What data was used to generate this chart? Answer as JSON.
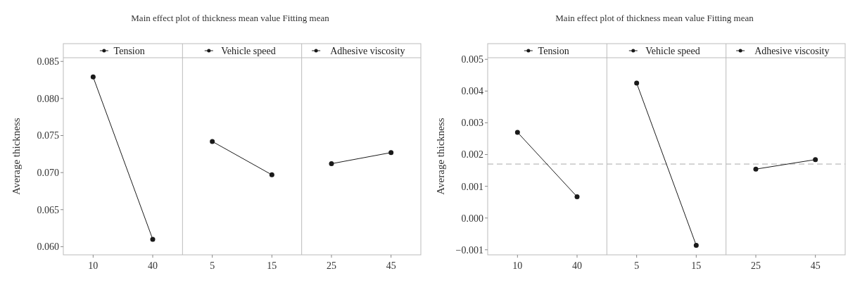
{
  "chart_data": [
    {
      "type": "line",
      "title": "Main effect plot of thickness mean value Fitting mean",
      "ylabel": "Average thickness",
      "categories": [
        "10",
        "40",
        "5",
        "15",
        "25",
        "45"
      ],
      "series": [
        {
          "name": "Tension",
          "color": "#1a1a1a",
          "values": [
            0.0829,
            0.061,
            null,
            null,
            null,
            null
          ]
        },
        {
          "name": "Vehicle speed",
          "color": "#1a1a1a",
          "values": [
            null,
            null,
            0.0742,
            0.0697,
            null,
            null
          ]
        },
        {
          "name": "Adhesive viscosity",
          "color": "#1a1a1a",
          "values": [
            null,
            null,
            null,
            null,
            0.0712,
            0.0727
          ]
        }
      ],
      "ylim": [
        0.0589,
        0.0855
      ],
      "yticks": [
        {
          "value": 0.06,
          "label": "0.060"
        },
        0.065,
        {
          "value": 0.07,
          "label": "0.070"
        },
        0.075,
        {
          "value": 0.08,
          "label": "0.080"
        },
        0.085
      ],
      "marker": "circle",
      "line_style": "solid",
      "grid": false,
      "legend": "top"
    },
    {
      "type": "line",
      "title": "Main effect plot of thickness mean value Fitting mean",
      "ylabel": "Average thickness",
      "categories": [
        "10",
        "40",
        "5",
        "15",
        "25",
        "45"
      ],
      "series": [
        {
          "name": "Tension",
          "color": "#1a1a1a",
          "values": [
            0.0027,
            0.00067,
            null,
            null,
            null,
            null
          ]
        },
        {
          "name": "Vehicle speed",
          "color": "#1a1a1a",
          "values": [
            null,
            null,
            0.00425,
            -0.00086,
            null,
            null
          ]
        },
        {
          "name": "Adhesive viscosity",
          "color": "#1a1a1a",
          "values": [
            null,
            null,
            null,
            null,
            0.00154,
            0.00184
          ]
        }
      ],
      "ylim": [
        -0.00116,
        0.00505
      ],
      "yticks": [
        {
          "value": -0.001,
          "label": "−0.001"
        },
        {
          "value": 0,
          "label": "0.000"
        },
        0.001,
        0.002,
        0.003,
        0.004,
        0.005
      ],
      "ref_lines": [
        {
          "axis": "y",
          "value": 0.0017,
          "color": "#aaaaaa",
          "line_style": "dashed"
        }
      ],
      "marker": "circle",
      "line_style": "solid",
      "grid": false,
      "legend": "top"
    }
  ]
}
